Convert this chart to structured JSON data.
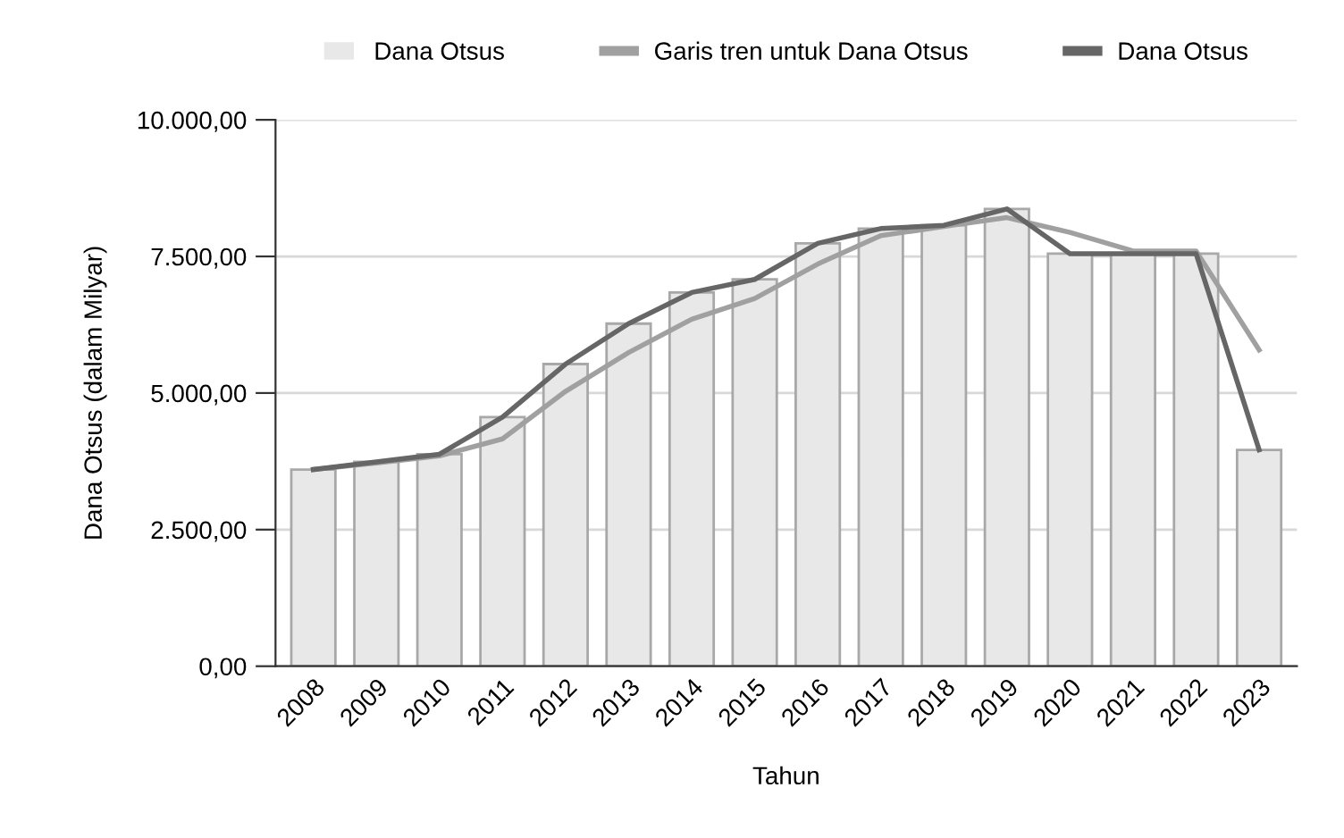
{
  "chart_data": {
    "type": "bar",
    "xlabel": "Tahun",
    "ylabel": "Dana Otsus (dalam Milyar)",
    "categories": [
      "2008",
      "2009",
      "2010",
      "2011",
      "2012",
      "2013",
      "2014",
      "2015",
      "2016",
      "2017",
      "2018",
      "2019",
      "2020",
      "2021",
      "2022",
      "2023"
    ],
    "series": [
      {
        "name": "Dana Otsus",
        "color": "#e8e8e8",
        "values": [
          3600,
          3740,
          3880,
          4560,
          5530,
          6270,
          6840,
          7080,
          7740,
          8010,
          8070,
          8370,
          7550,
          7550,
          7550,
          3960
        ]
      },
      {
        "name": "Garis tren untuk Dana Otsus",
        "type": "line",
        "color": "#a0a0a0",
        "values": [
          3600,
          3720,
          3850,
          4160,
          5030,
          5740,
          6350,
          6730,
          7360,
          7880,
          8050,
          8210,
          7940,
          7600,
          7600,
          5790
        ]
      },
      {
        "name": "Dana Otsus",
        "type": "line",
        "color": "#666666",
        "values": [
          3600,
          3740,
          3880,
          4560,
          5530,
          6270,
          6840,
          7080,
          7740,
          8010,
          8070,
          8370,
          7550,
          7550,
          7550,
          3960
        ]
      }
    ],
    "ylim": [
      0,
      10000
    ],
    "yticks": [
      {
        "value": 0,
        "label": "0,00"
      },
      {
        "value": 2500,
        "label": "2.500,00"
      },
      {
        "value": 5000,
        "label": "5.000,00"
      },
      {
        "value": 7500,
        "label": "7.500,00"
      },
      {
        "value": 10000,
        "label": "10.000,00"
      }
    ],
    "grid": "y",
    "legend": "top",
    "marker": "none",
    "line_style": "solid"
  }
}
